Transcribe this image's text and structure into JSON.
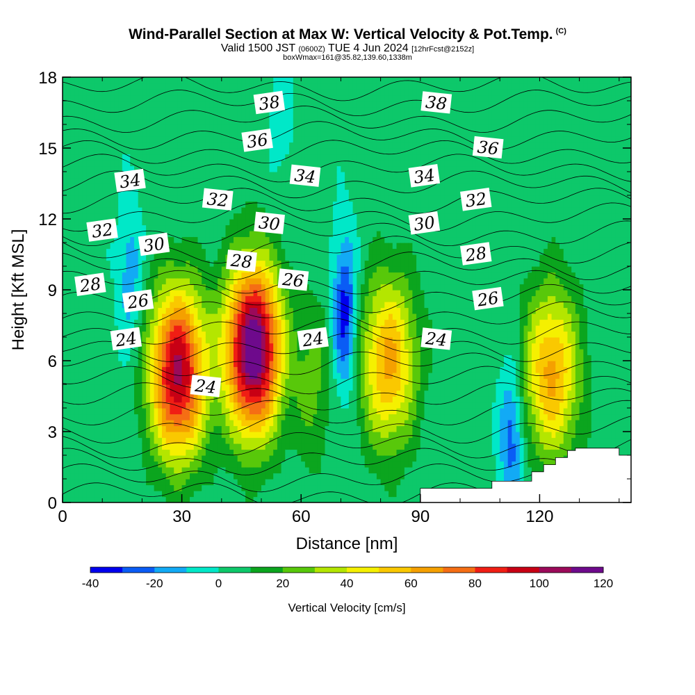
{
  "title": "Wind-Parallel Section at Max W: Vertical Velocity & Pot.Temp.",
  "title_mark": "(C)",
  "subtitle_main": "Valid 1500 JST",
  "subtitle_utc": "(0600Z)",
  "subtitle_date": "TUE 4 Jun 2024",
  "subtitle_fcst": "[12hrFcst@2152z]",
  "box_info": "boxWmax=161@35.82,139.60,1338m",
  "chart_data": {
    "type": "heatmap",
    "xlabel": "Distance [nm]",
    "ylabel": "Height [Kft MSL]",
    "xlim": [
      0,
      143
    ],
    "ylim": [
      0,
      18
    ],
    "x_ticks": [
      "0",
      "30",
      "60",
      "90",
      "120"
    ],
    "y_ticks": [
      "0",
      "3",
      "6",
      "9",
      "12",
      "15",
      "18"
    ],
    "colorbar": {
      "label": "Vertical Velocity [cm/s]",
      "tick_labels": [
        "-40",
        "-20",
        "0",
        "20",
        "40",
        "60",
        "80",
        "100",
        "120"
      ],
      "levels": [
        -40,
        -30,
        -20,
        -10,
        0,
        10,
        20,
        30,
        40,
        50,
        60,
        70,
        80,
        90,
        100,
        110,
        120
      ],
      "colors": [
        "#0000ee",
        "#0a5cf5",
        "#12aaf5",
        "#00e8c8",
        "#0dc86a",
        "#0ba51e",
        "#58c80a",
        "#b4e600",
        "#f5f000",
        "#fac800",
        "#f5a000",
        "#f56e14",
        "#f01e14",
        "#c80014",
        "#9b0a5a",
        "#6e0a8c"
      ]
    },
    "updraft_cores": [
      {
        "x": 29,
        "z": 5.5,
        "w_max": 100
      },
      {
        "x": 48,
        "z": 6.5,
        "w_max": 120
      },
      {
        "x": 63,
        "z": 5.0,
        "w_max": 20
      },
      {
        "x": 82,
        "z": 6.0,
        "w_max": 60
      },
      {
        "x": 123,
        "z": 5.5,
        "w_max": 60
      }
    ],
    "downdraft_cores": [
      {
        "x": 71,
        "z": 8.0,
        "w_min": -40
      },
      {
        "x": 17,
        "z": 9.5,
        "w_min": -20
      },
      {
        "x": 113,
        "z": 2.8,
        "w_min": -30
      },
      {
        "x": 55,
        "z": 16.5,
        "w_min": -10
      }
    ],
    "theta_contours": [
      {
        "label": "24",
        "label_positions": [
          [
            16,
            6.9
          ],
          [
            36,
            4.9
          ],
          [
            63,
            6.9
          ],
          [
            94,
            6.9
          ]
        ]
      },
      {
        "label": "26",
        "label_positions": [
          [
            19,
            8.5
          ],
          [
            58,
            9.4
          ],
          [
            107,
            8.6
          ]
        ]
      },
      {
        "label": "28",
        "label_positions": [
          [
            7,
            9.2
          ],
          [
            45,
            10.2
          ],
          [
            104,
            10.5
          ]
        ]
      },
      {
        "label": "30",
        "label_positions": [
          [
            23,
            10.9
          ],
          [
            52,
            11.8
          ],
          [
            91,
            11.8
          ]
        ]
      },
      {
        "label": "32",
        "label_positions": [
          [
            10,
            11.5
          ],
          [
            39,
            12.8
          ],
          [
            104,
            12.8
          ]
        ]
      },
      {
        "label": "34",
        "label_positions": [
          [
            17,
            13.6
          ],
          [
            61,
            13.8
          ],
          [
            91,
            13.8
          ]
        ]
      },
      {
        "label": "36",
        "label_positions": [
          [
            49,
            15.3
          ],
          [
            107,
            15.0
          ]
        ]
      },
      {
        "label": "38",
        "label_positions": [
          [
            52,
            16.9
          ],
          [
            94,
            16.9
          ]
        ]
      }
    ],
    "terrain_steps": [
      [
        90,
        0.6
      ],
      [
        108,
        0.9
      ],
      [
        118,
        1.3
      ],
      [
        121,
        1.6
      ],
      [
        124,
        1.9
      ],
      [
        127,
        2.2
      ],
      [
        129,
        2.3
      ],
      [
        140,
        2.0
      ]
    ]
  }
}
